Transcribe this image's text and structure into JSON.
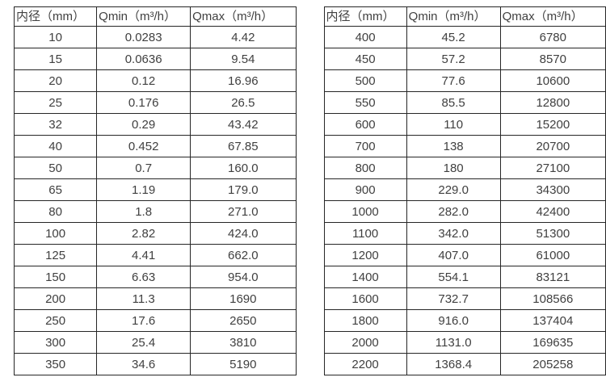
{
  "colors": {
    "border": "#262626",
    "text": "#404040",
    "background": "#ffffff"
  },
  "table_left": {
    "headers": [
      "内径（mm）",
      "Qmin（m³/h）",
      "Qmax（m³/h）"
    ],
    "rows": [
      [
        "10",
        "0.0283",
        "4.42"
      ],
      [
        "15",
        "0.0636",
        "9.54"
      ],
      [
        "20",
        "0.12",
        "16.96"
      ],
      [
        "25",
        "0.176",
        "26.5"
      ],
      [
        "32",
        "0.29",
        "43.42"
      ],
      [
        "40",
        "0.452",
        "67.85"
      ],
      [
        "50",
        "0.7",
        "160.0"
      ],
      [
        "65",
        "1.19",
        "179.0"
      ],
      [
        "80",
        "1.8",
        "271.0"
      ],
      [
        "100",
        "2.82",
        "424.0"
      ],
      [
        "125",
        "4.41",
        "662.0"
      ],
      [
        "150",
        "6.63",
        "954.0"
      ],
      [
        "200",
        "11.3",
        "1690"
      ],
      [
        "250",
        "17.6",
        "2650"
      ],
      [
        "300",
        "25.4",
        "3810"
      ],
      [
        "350",
        "34.6",
        "5190"
      ]
    ]
  },
  "table_right": {
    "headers": [
      "内径（mm）",
      "Qmin（m³/h）",
      "Qmax（m³/h）"
    ],
    "rows": [
      [
        "400",
        "45.2",
        "6780"
      ],
      [
        "450",
        "57.2",
        "8570"
      ],
      [
        "500",
        "77.6",
        "10600"
      ],
      [
        "550",
        "85.5",
        "12800"
      ],
      [
        "600",
        "110",
        "15200"
      ],
      [
        "700",
        "138",
        "20700"
      ],
      [
        "800",
        "180",
        "27100"
      ],
      [
        "900",
        "229.0",
        "34300"
      ],
      [
        "1000",
        "282.0",
        "42400"
      ],
      [
        "1100",
        "342.0",
        "51300"
      ],
      [
        "1200",
        "407.0",
        "61000"
      ],
      [
        "1400",
        "554.1",
        "83121"
      ],
      [
        "1600",
        "732.7",
        "108566"
      ],
      [
        "1800",
        "916.0",
        "137404"
      ],
      [
        "2000",
        "1131.0",
        "169635"
      ],
      [
        "2200",
        "1368.4",
        "205258"
      ]
    ]
  }
}
